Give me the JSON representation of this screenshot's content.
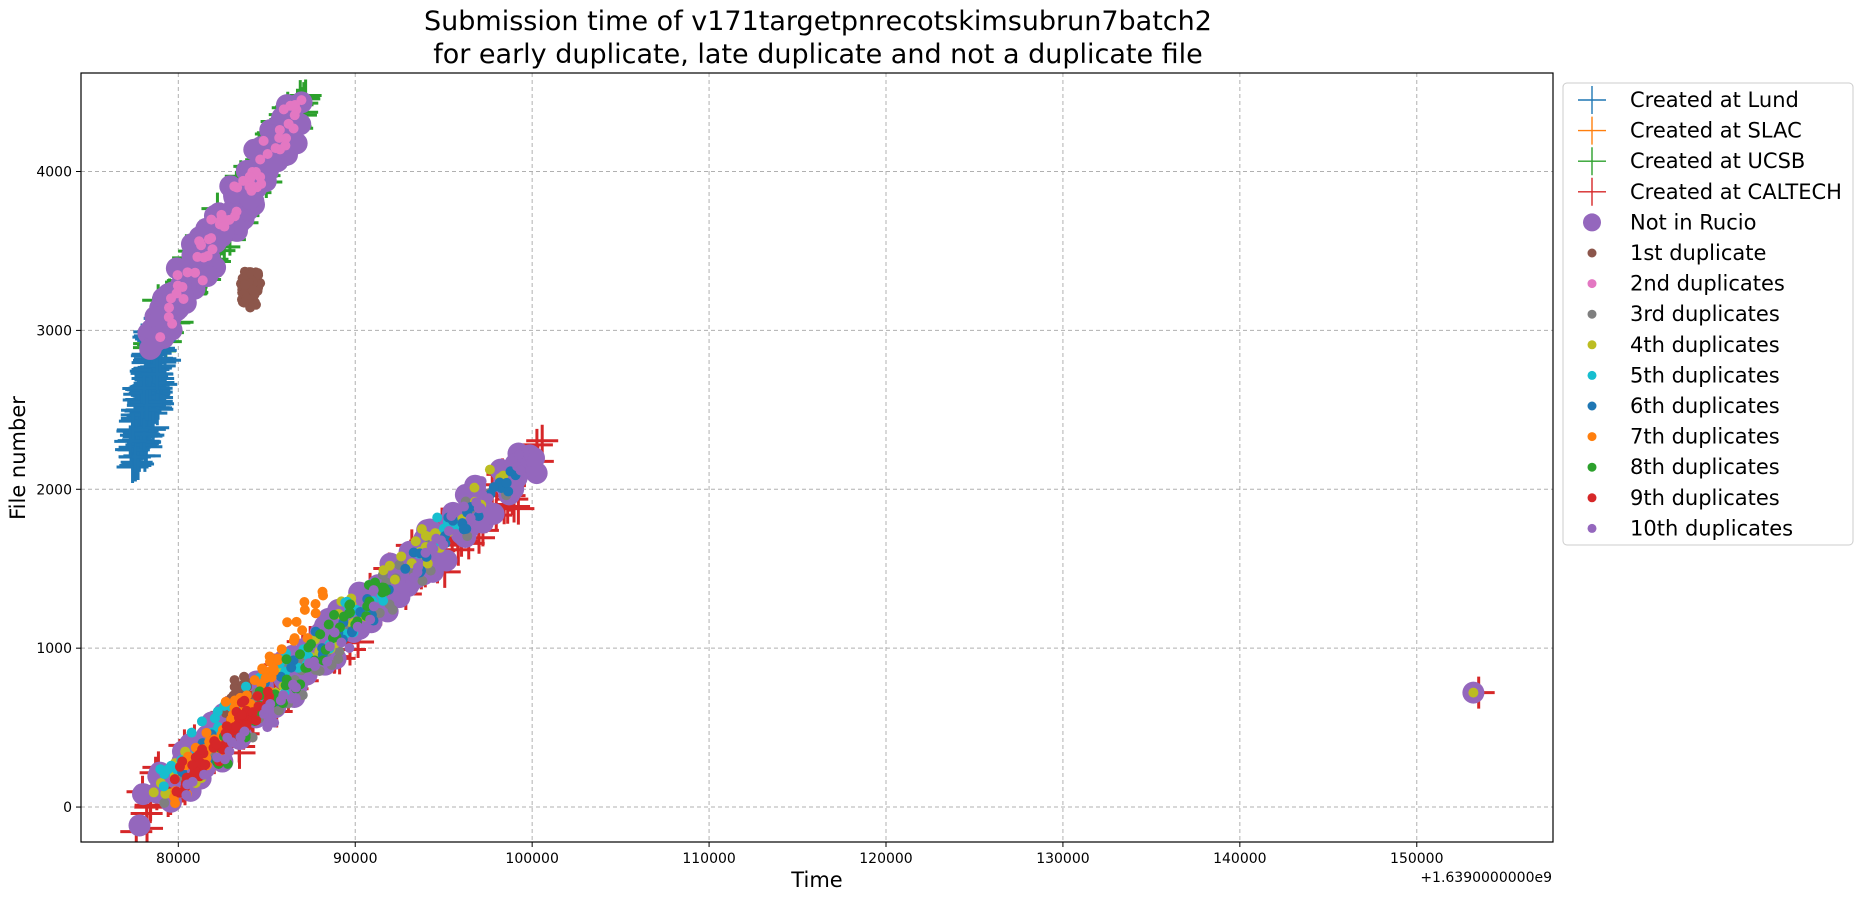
{
  "chart_data": {
    "type": "scatter",
    "title_line1": "Submission time of v171targetpnrecotskimsubrun7batch2",
    "title_line2": "for early duplicate, late duplicate and not a duplicate file",
    "xlabel": "Time",
    "ylabel": "File number",
    "x_offset_label": "+1.6390000000e9",
    "xlim": [
      74500,
      157700
    ],
    "ylim": [
      -220,
      4620
    ],
    "x_ticks": [
      80000,
      90000,
      100000,
      110000,
      120000,
      130000,
      140000,
      150000
    ],
    "x_tick_labels": [
      "80000",
      "90000",
      "100000",
      "110000",
      "120000",
      "130000",
      "140000",
      "150000"
    ],
    "y_ticks": [
      0,
      1000,
      2000,
      3000,
      4000
    ],
    "y_tick_labels": [
      "0",
      "1000",
      "2000",
      "3000",
      "4000"
    ],
    "grid": true,
    "legend_position": "outside-upper-right",
    "series": [
      {
        "name": "Created at Lund",
        "marker": "plus",
        "color": "#1f77b4",
        "ranges": [
          [
            77700,
            2240,
            78900,
            2930
          ]
        ],
        "spread": 180
      },
      {
        "name": "Created at SLAC",
        "marker": "plus",
        "color": "#ff7f0e",
        "ranges": []
      },
      {
        "name": "Created at UCSB",
        "marker": "plus",
        "color": "#2ca02c",
        "ranges": [
          [
            78500,
            2960,
            87000,
            4420
          ]
        ],
        "spread": 120
      },
      {
        "name": "Created at CALTECH",
        "marker": "plus",
        "color": "#d62728",
        "ranges": [
          [
            78000,
            0,
            100500,
            2200
          ]
        ],
        "points": [
          [
            153500,
            720
          ]
        ],
        "spread": 160
      },
      {
        "name": "Not in Rucio",
        "marker": "circle-large",
        "color": "#9467bd",
        "ranges": [
          [
            78000,
            0,
            100000,
            2190
          ],
          [
            78500,
            2980,
            87000,
            4400
          ]
        ],
        "points": [
          [
            153200,
            720
          ]
        ],
        "spread": 130
      },
      {
        "name": "1st duplicate",
        "marker": "circle",
        "color": "#8c564b",
        "ranges": [
          [
            83000,
            500,
            83800,
            760
          ],
          [
            83800,
            3200,
            84200,
            3300
          ]
        ],
        "spread": 100
      },
      {
        "name": "2nd duplicates",
        "marker": "circle",
        "color": "#e377c2",
        "ranges": [
          [
            78800,
            3000,
            86800,
            4400
          ]
        ],
        "spread": 90
      },
      {
        "name": "3rd duplicates",
        "marker": "circle",
        "color": "#7f7f7f",
        "ranges": [
          [
            79000,
            0,
            99000,
            2100
          ]
        ],
        "spread": 120
      },
      {
        "name": "4th duplicates",
        "marker": "circle",
        "color": "#bcbd22",
        "ranges": [
          [
            79000,
            50,
            98500,
            2150
          ]
        ],
        "points": [
          [
            153200,
            720
          ]
        ],
        "spread": 120
      },
      {
        "name": "5th duplicates",
        "marker": "circle",
        "color": "#17becf",
        "ranges": [
          [
            78500,
            150,
            97000,
            1900
          ]
        ],
        "spread": 120
      },
      {
        "name": "6th duplicates",
        "marker": "circle",
        "color": "#1f77b4",
        "ranges": [
          [
            80000,
            180,
            99000,
            2100
          ]
        ],
        "spread": 100
      },
      {
        "name": "7th duplicates",
        "marker": "circle",
        "color": "#ff7f0e",
        "ranges": [
          [
            79500,
            30,
            88000,
            1300
          ]
        ],
        "spread": 100
      },
      {
        "name": "8th duplicates",
        "marker": "circle",
        "color": "#2ca02c",
        "ranges": [
          [
            82000,
            300,
            92000,
            1500
          ]
        ],
        "spread": 100
      },
      {
        "name": "9th duplicates",
        "marker": "circle",
        "color": "#d62728",
        "ranges": [
          [
            80000,
            150,
            85000,
            700
          ]
        ],
        "spread": 80
      },
      {
        "name": "10th duplicates",
        "marker": "circle",
        "color": "#9467bd",
        "ranges": [
          [
            80500,
            100,
            99000,
            2150
          ]
        ],
        "spread": 80
      }
    ]
  }
}
